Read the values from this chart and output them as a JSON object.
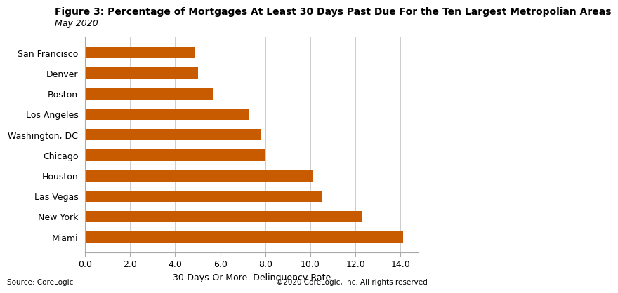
{
  "title": "Figure 3: Percentage of Mortgages At Least 30 Days Past Due For the Ten Largest Metropolian Areas",
  "subtitle": "May 2020",
  "xlabel": "30-Days-Or-More  Delinquency Rate",
  "categories": [
    "San Francisco",
    "Denver",
    "Boston",
    "Los Angeles",
    "Washington, DC",
    "Chicago",
    "Houston",
    "Las Vegas",
    "New York",
    "Miami"
  ],
  "values": [
    4.9,
    5.0,
    5.7,
    7.3,
    7.8,
    8.0,
    10.1,
    10.5,
    12.3,
    14.1
  ],
  "bar_color": "#C85A00",
  "xlim": [
    0,
    14.8
  ],
  "xticks": [
    0.0,
    2.0,
    4.0,
    6.0,
    8.0,
    10.0,
    12.0,
    14.0
  ],
  "source_left": "Source: CoreLogic",
  "source_right": "©2020 CoreLogic, Inc. All rights reserved",
  "title_fontsize": 10,
  "subtitle_fontsize": 9,
  "xlabel_fontsize": 9,
  "tick_fontsize": 9,
  "label_fontsize": 9,
  "background_color": "#ffffff"
}
